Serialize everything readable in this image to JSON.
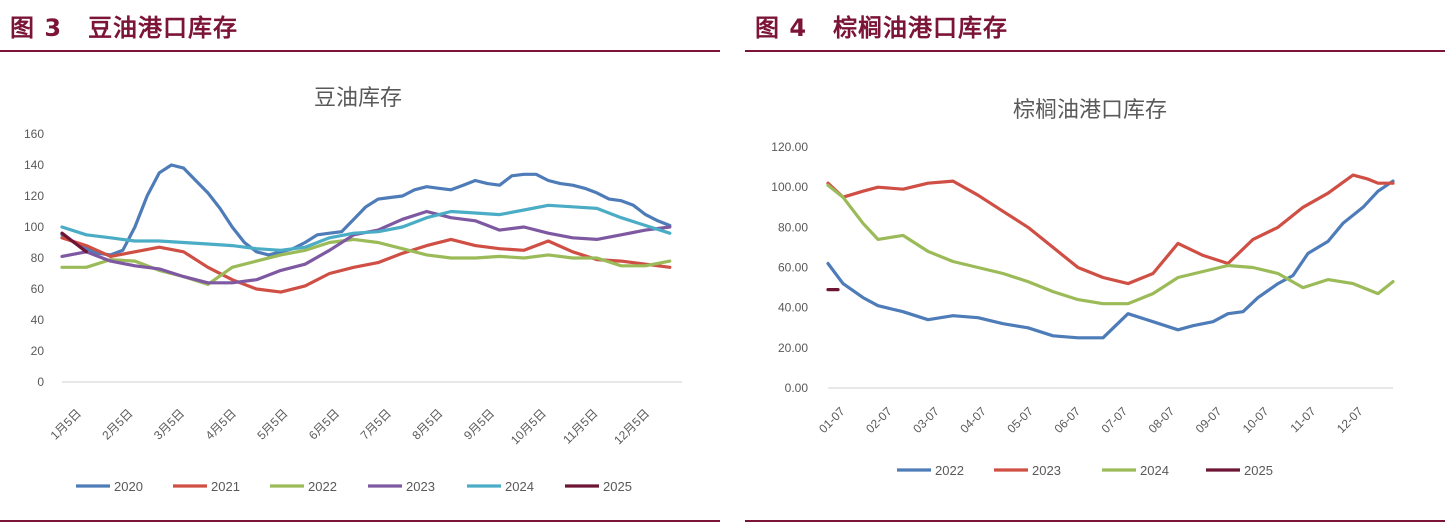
{
  "figures": [
    {
      "number": "图 3",
      "heading": "豆油港口库存",
      "chart_data": {
        "type": "line",
        "title": "豆油库存",
        "xlabel": "",
        "ylabel": "",
        "categories": [
          "1月5日",
          "2月5日",
          "3月5日",
          "4月5日",
          "5月5日",
          "6月5日",
          "7月5日",
          "8月5日",
          "9月5日",
          "10月5日",
          "11月5日",
          "12月5日"
        ],
        "x_range": [
          0,
          51
        ],
        "ylim": [
          0,
          160
        ],
        "yticks": [
          "0",
          "20",
          "40",
          "60",
          "80",
          "100",
          "120",
          "140",
          "160"
        ],
        "ytick_values": [
          0,
          20,
          40,
          60,
          80,
          100,
          120,
          140,
          160
        ],
        "grid": false,
        "legend": "bottom",
        "series": [
          {
            "name": "2020",
            "color": "#4e7cb8",
            "x": [
              0,
              1,
              2,
              3,
              4,
              5,
              6,
              7,
              8,
              9,
              10,
              11,
              12,
              13,
              14,
              15,
              16,
              17,
              18,
              19,
              20,
              21,
              22,
              23,
              24,
              25,
              26,
              27,
              28,
              29,
              30,
              31,
              32,
              33,
              34,
              35,
              36,
              37,
              38,
              39,
              40,
              41,
              42,
              43,
              44,
              45,
              46,
              47,
              48,
              49,
              50
            ],
            "values": [
              95,
              90,
              86,
              83,
              82,
              85,
              100,
              120,
              135,
              140,
              138,
              130,
              122,
              112,
              100,
              90,
              84,
              82,
              84,
              86,
              90,
              95,
              96,
              97,
              105,
              113,
              118,
              119,
              120,
              124,
              126,
              125,
              124,
              127,
              130,
              128,
              127,
              133,
              134,
              134,
              130,
              128,
              127,
              125,
              122,
              118,
              117,
              114,
              108,
              104,
              101
            ]
          },
          {
            "name": "2021",
            "color": "#cf4f45",
            "x": [
              0,
              2,
              4,
              6,
              8,
              10,
              12,
              14,
              16,
              18,
              20,
              22,
              24,
              26,
              28,
              30,
              32,
              34,
              36,
              38,
              40,
              42,
              44,
              46,
              48,
              50
            ],
            "values": [
              93,
              88,
              81,
              84,
              87,
              84,
              74,
              66,
              60,
              58,
              62,
              70,
              74,
              77,
              83,
              88,
              92,
              88,
              86,
              85,
              91,
              84,
              79,
              78,
              76,
              74
            ]
          },
          {
            "name": "2022",
            "color": "#9bbb59",
            "x": [
              0,
              2,
              4,
              6,
              8,
              10,
              12,
              14,
              16,
              18,
              20,
              22,
              24,
              26,
              28,
              30,
              32,
              34,
              36,
              38,
              40,
              42,
              44,
              46,
              48,
              50
            ],
            "values": [
              74,
              74,
              79,
              78,
              72,
              68,
              63,
              74,
              78,
              82,
              85,
              90,
              92,
              90,
              86,
              82,
              80,
              80,
              81,
              80,
              82,
              80,
              80,
              75,
              75,
              78
            ]
          },
          {
            "name": "2023",
            "color": "#7e59a2",
            "x": [
              0,
              2,
              4,
              6,
              8,
              10,
              12,
              14,
              16,
              18,
              20,
              22,
              24,
              26,
              28,
              30,
              32,
              34,
              36,
              38,
              40,
              42,
              44,
              46,
              48,
              50
            ],
            "values": [
              81,
              84,
              78,
              75,
              73,
              68,
              64,
              64,
              66,
              72,
              76,
              85,
              95,
              98,
              105,
              110,
              106,
              104,
              98,
              100,
              96,
              93,
              92,
              95,
              98,
              100
            ]
          },
          {
            "name": "2024",
            "color": "#4bacc6",
            "x": [
              0,
              2,
              4,
              6,
              8,
              10,
              12,
              14,
              16,
              18,
              20,
              22,
              24,
              26,
              28,
              30,
              32,
              34,
              36,
              38,
              40,
              42,
              44,
              46,
              48,
              50
            ],
            "values": [
              100,
              95,
              93,
              91,
              91,
              90,
              89,
              88,
              86,
              85,
              87,
              93,
              96,
              97,
              100,
              106,
              110,
              109,
              108,
              111,
              114,
              113,
              112,
              106,
              101,
              96
            ]
          },
          {
            "name": "2025",
            "color": "#6e1435",
            "x": [
              0,
              1,
              2
            ],
            "values": [
              96,
              90,
              84
            ]
          }
        ]
      }
    },
    {
      "number": "图 4",
      "heading": "棕榈油港口库存",
      "chart_data": {
        "type": "line",
        "title": "棕榈油港口库存",
        "xlabel": "",
        "ylabel": "",
        "categories": [
          "01-07",
          "02-07",
          "03-07",
          "04-07",
          "05-07",
          "06-07",
          "07-07",
          "08-07",
          "09-07",
          "10-07",
          "11-07",
          "12-07"
        ],
        "x_range": [
          0,
          11.3
        ],
        "ylim": [
          0,
          120
        ],
        "yticks": [
          "0.00",
          "20.00",
          "40.00",
          "60.00",
          "80.00",
          "100.00",
          "120.00"
        ],
        "ytick_values": [
          0,
          20,
          40,
          60,
          80,
          100,
          120
        ],
        "grid": false,
        "legend": "bottom",
        "series": [
          {
            "name": "2022",
            "color": "#4e7cb8",
            "x": [
              0,
              0.3,
              0.7,
              1,
              1.5,
              2,
              2.5,
              3,
              3.5,
              4,
              4.5,
              5,
              5.5,
              6,
              6.5,
              7,
              7.3,
              7.7,
              8,
              8.3,
              8.6,
              9,
              9.3,
              9.6,
              10,
              10.3,
              10.7,
              11,
              11.3
            ],
            "values": [
              62,
              52,
              45,
              41,
              38,
              34,
              36,
              35,
              32,
              30,
              26,
              25,
              25,
              37,
              33,
              29,
              31,
              33,
              37,
              38,
              45,
              52,
              56,
              67,
              73,
              82,
              90,
              98,
              103
            ]
          },
          {
            "name": "2023",
            "color": "#cf4f45",
            "x": [
              0,
              0.3,
              0.7,
              1,
              1.5,
              2,
              2.5,
              3,
              3.5,
              4,
              4.5,
              5,
              5.5,
              6,
              6.5,
              7,
              7.5,
              8,
              8.5,
              9,
              9.5,
              10,
              10.5,
              10.8,
              11,
              11.3
            ],
            "values": [
              102,
              95,
              98,
              100,
              99,
              102,
              103,
              96,
              88,
              80,
              70,
              60,
              55,
              52,
              57,
              72,
              66,
              62,
              74,
              80,
              90,
              97,
              106,
              104,
              102,
              102
            ]
          },
          {
            "name": "2024",
            "color": "#9bbb59",
            "x": [
              0,
              0.3,
              0.7,
              1,
              1.5,
              2,
              2.5,
              3,
              3.5,
              4,
              4.5,
              5,
              5.5,
              6,
              6.5,
              7,
              7.5,
              8,
              8.5,
              9,
              9.5,
              10,
              10.5,
              11,
              11.3
            ],
            "values": [
              101,
              95,
              82,
              74,
              76,
              68,
              63,
              60,
              57,
              53,
              48,
              44,
              42,
              42,
              47,
              55,
              58,
              61,
              60,
              57,
              50,
              54,
              52,
              47,
              53
            ]
          },
          {
            "name": "2025",
            "color": "#6e1435",
            "x": [
              0,
              0.2
            ],
            "values": [
              49,
              49
            ]
          }
        ]
      }
    }
  ]
}
